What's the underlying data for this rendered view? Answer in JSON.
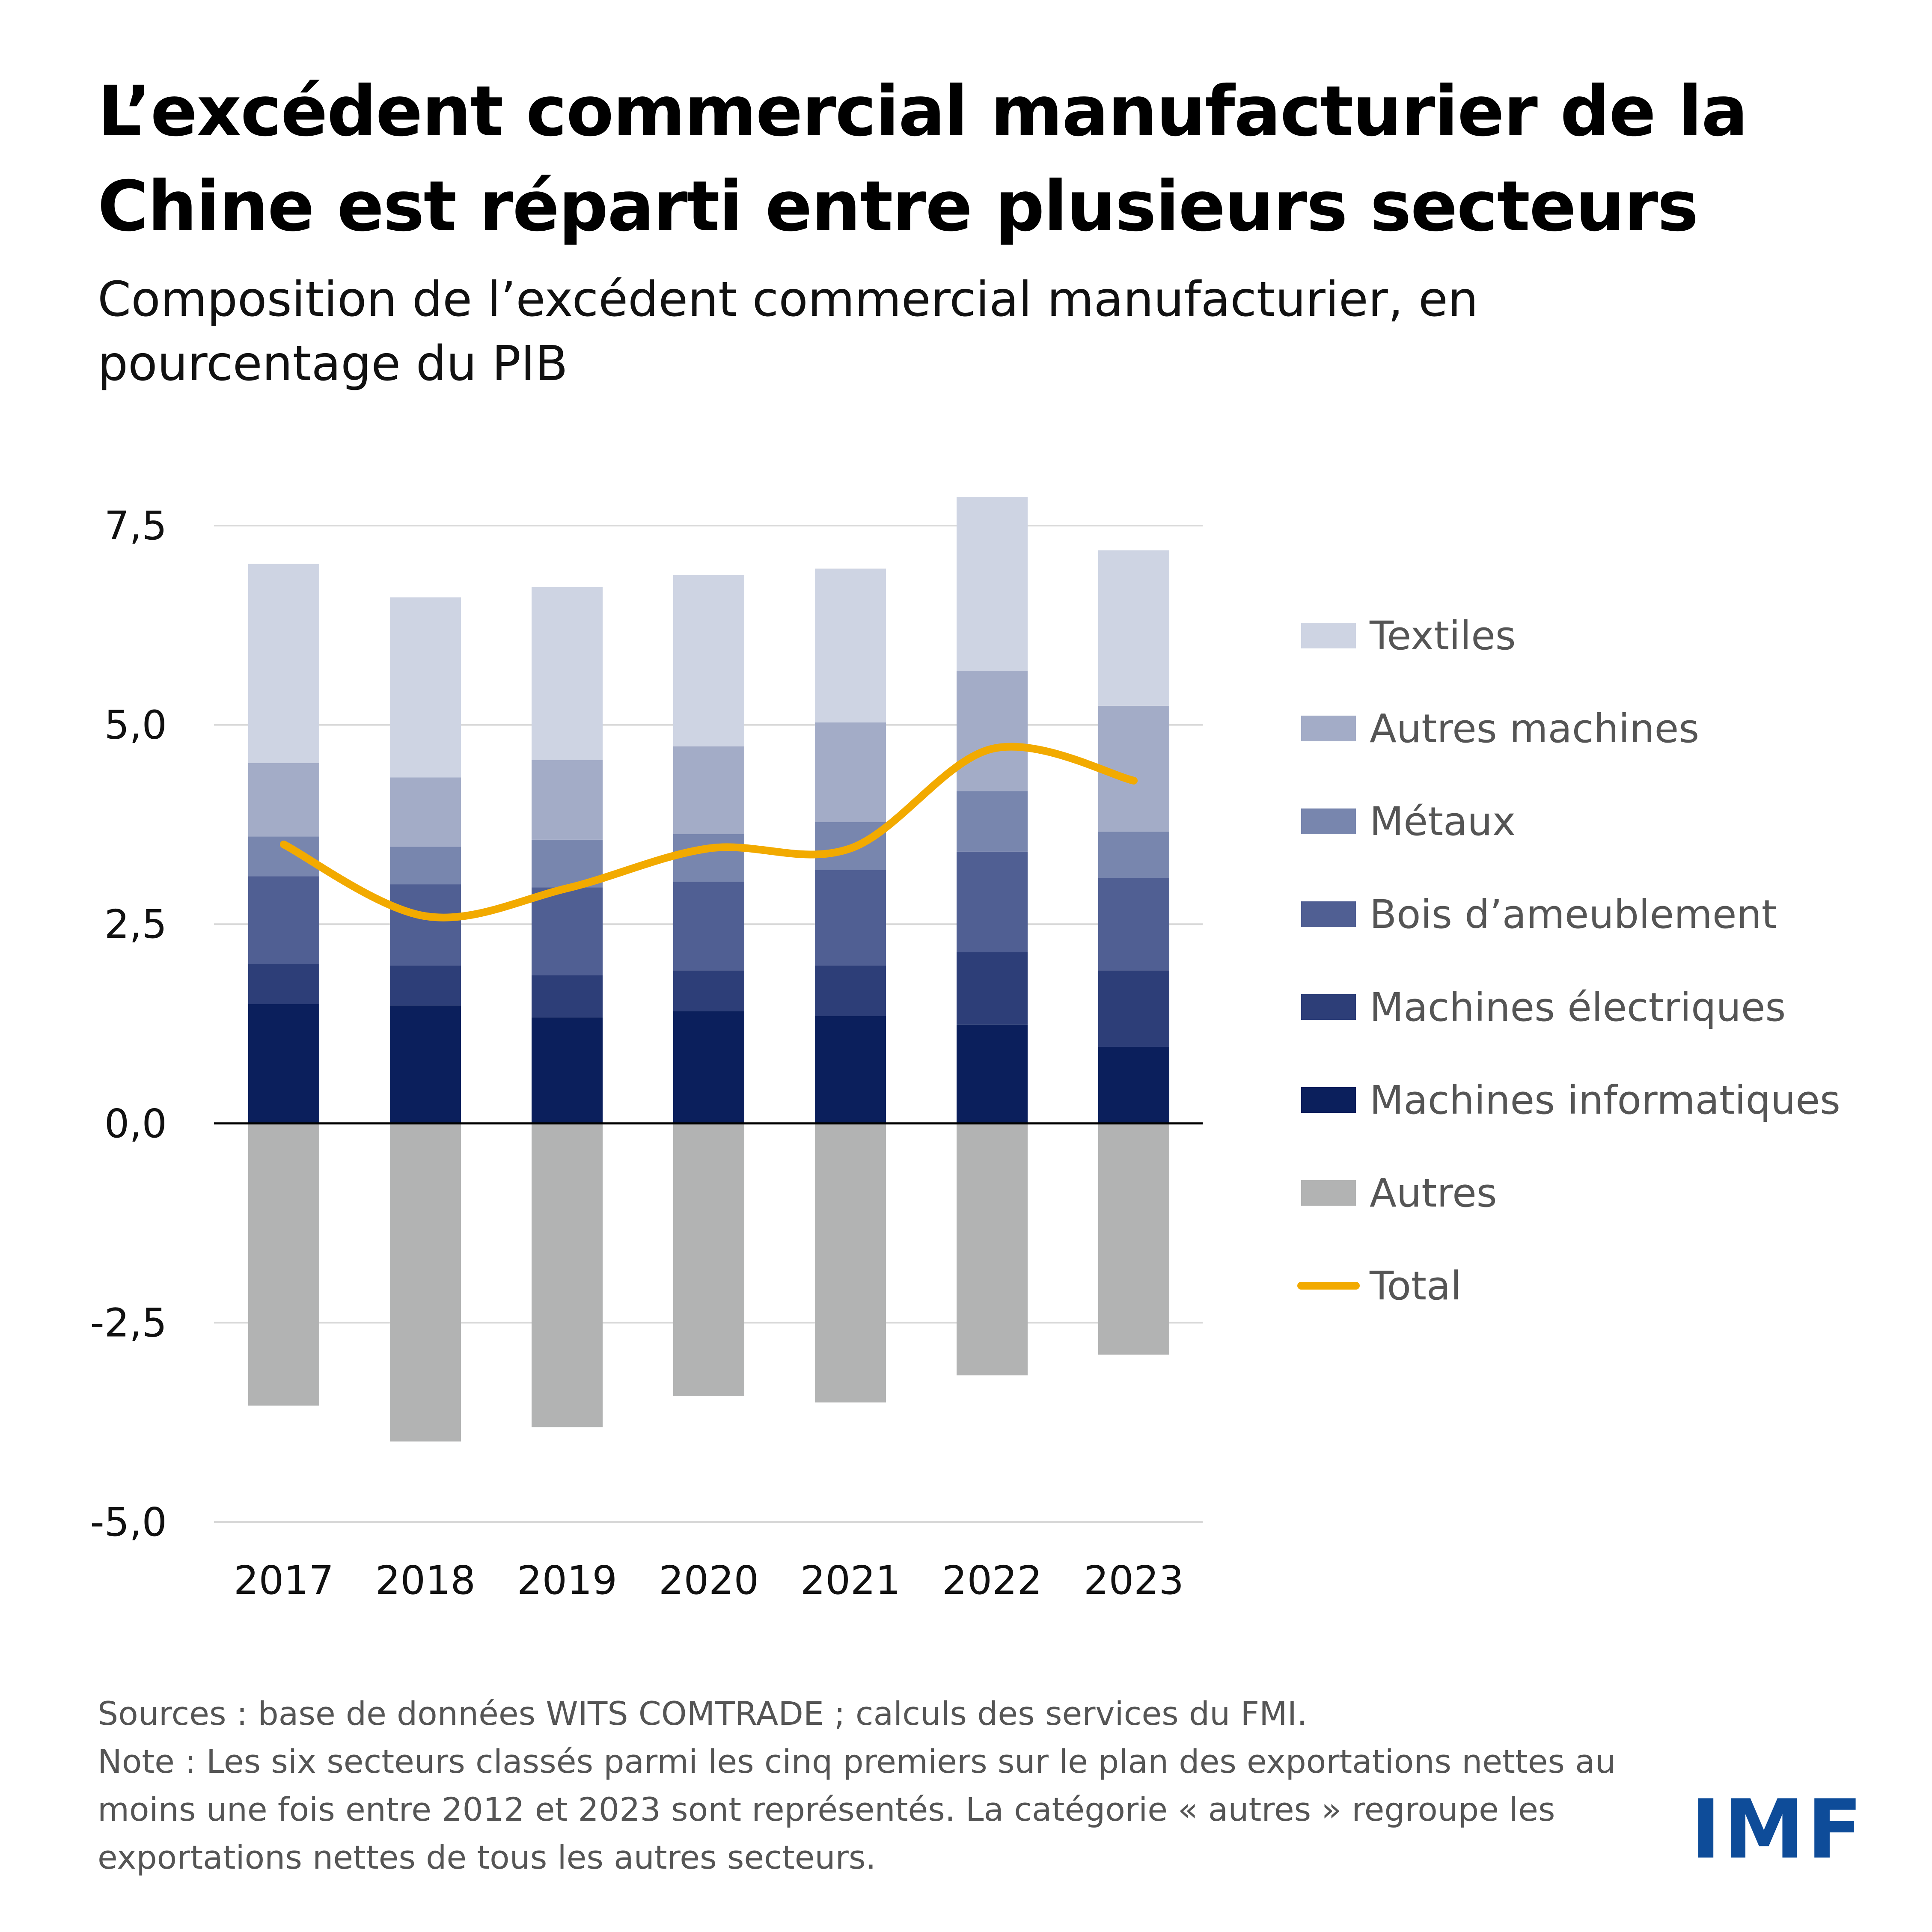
{
  "title": "L’excédent commercial manufacturier de la Chine est réparti entre plusieurs secteurs",
  "subtitle": "Composition de l’excédent commercial manufacturier, en pourcentage du PIB",
  "footer": {
    "sources": "Sources : base de données WITS COMTRADE ; calculs des services du FMI.",
    "note": "Note : Les six secteurs classés parmi les cinq premiers sur le plan des exportations nettes au moins une fois entre 2012 et 2023 sont représentés. La catégorie « autres » regroupe les exportations nettes de tous les autres secteurs."
  },
  "logo": "IMF",
  "chart_data": {
    "type": "bar",
    "stacked": true,
    "categories": [
      "2017",
      "2018",
      "2019",
      "2020",
      "2021",
      "2022",
      "2023"
    ],
    "y_ticks": [
      7.5,
      5.0,
      2.5,
      0.0,
      -2.5,
      -5.0
    ],
    "y_tick_labels": [
      "7,5",
      "5,0",
      "2,5",
      "0,0",
      "-2,5",
      "-5,0"
    ],
    "ylim": [
      -5.0,
      7.5
    ],
    "grid": true,
    "legend_position": "right",
    "series": [
      {
        "name": "Machines informatiques",
        "color": "#0b1f5c",
        "values": [
          1.5,
          1.48,
          1.33,
          1.41,
          1.35,
          1.24,
          0.96
        ]
      },
      {
        "name": "Machines électriques",
        "color": "#2d3e78",
        "values": [
          0.5,
          0.5,
          0.53,
          0.51,
          0.63,
          0.91,
          0.96
        ]
      },
      {
        "name": "Bois d’ameublement",
        "color": "#505f93",
        "values": [
          1.1,
          1.02,
          1.1,
          1.11,
          1.2,
          1.26,
          1.16
        ]
      },
      {
        "name": "Métaux",
        "color": "#7886ae",
        "values": [
          0.5,
          0.47,
          0.6,
          0.6,
          0.6,
          0.76,
          0.58
        ]
      },
      {
        "name": "Autres machines",
        "color": "#a3acc7",
        "values": [
          0.92,
          0.87,
          1.0,
          1.1,
          1.25,
          1.51,
          1.58
        ]
      },
      {
        "name": "Textiles",
        "color": "#ced4e3",
        "values": [
          2.5,
          2.26,
          2.17,
          2.15,
          1.93,
          2.18,
          1.95
        ]
      },
      {
        "name": "Autres",
        "color": "#b2b3b3",
        "values": [
          -3.54,
          -3.99,
          -3.81,
          -3.42,
          -3.5,
          -3.16,
          -2.9
        ]
      }
    ],
    "total": {
      "name": "Total",
      "color": "#f2aa00",
      "values": [
        3.5,
        2.6,
        2.95,
        3.45,
        3.45,
        4.7,
        4.3
      ]
    }
  }
}
